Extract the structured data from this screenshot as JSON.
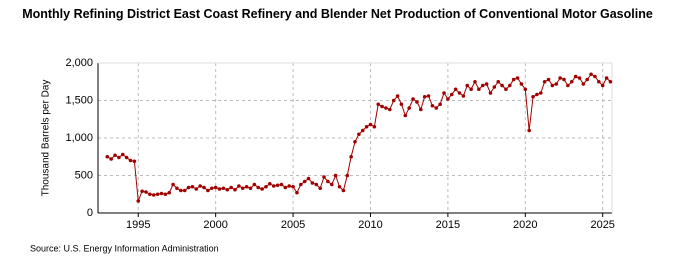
{
  "chart_data": {
    "type": "line",
    "title": "Monthly Refining District East Coast Refinery and Blender Net Production of Conventional Motor Gasoline",
    "y_label": "Thousand Barrels per Day",
    "source": "Source: U.S. Energy Information Administration",
    "color": "#a00000",
    "grid": true,
    "xlim": [
      1992.4,
      2025.6
    ],
    "xticks": [
      1995,
      2000,
      2005,
      2010,
      2015,
      2020,
      2025
    ],
    "ylim": [
      0,
      2000
    ],
    "yticks": [
      0,
      500,
      {
        "value": 1000,
        "label": "1,000"
      },
      {
        "value": 1500,
        "label": "1,500"
      },
      {
        "value": 2000,
        "label": "2,000"
      }
    ],
    "x": [
      1993,
      1993.25,
      1993.5,
      1993.75,
      1994,
      1994.25,
      1994.5,
      1994.75,
      1995,
      1995.25,
      1995.5,
      1995.75,
      1996,
      1996.25,
      1996.5,
      1996.75,
      1997,
      1997.25,
      1997.5,
      1997.75,
      1998,
      1998.25,
      1998.5,
      1998.75,
      1999,
      1999.25,
      1999.5,
      1999.75,
      2000,
      2000.25,
      2000.5,
      2000.75,
      2001,
      2001.25,
      2001.5,
      2001.75,
      2002,
      2002.25,
      2002.5,
      2002.75,
      2003,
      2003.25,
      2003.5,
      2003.75,
      2004,
      2004.25,
      2004.5,
      2004.75,
      2005,
      2005.25,
      2005.5,
      2005.75,
      2006,
      2006.25,
      2006.5,
      2006.75,
      2007,
      2007.25,
      2007.5,
      2007.75,
      2008,
      2008.25,
      2008.5,
      2008.75,
      2009,
      2009.25,
      2009.5,
      2009.75,
      2010,
      2010.25,
      2010.5,
      2010.75,
      2011,
      2011.25,
      2011.5,
      2011.75,
      2012,
      2012.25,
      2012.5,
      2012.75,
      2013,
      2013.25,
      2013.5,
      2013.75,
      2014,
      2014.25,
      2014.5,
      2014.75,
      2015,
      2015.25,
      2015.5,
      2015.75,
      2016,
      2016.25,
      2016.5,
      2016.75,
      2017,
      2017.25,
      2017.5,
      2017.75,
      2018,
      2018.25,
      2018.5,
      2018.75,
      2019,
      2019.25,
      2019.5,
      2019.75,
      2020,
      2020.25,
      2020.5,
      2020.75,
      2021,
      2021.25,
      2021.5,
      2021.75,
      2022,
      2022.25,
      2022.5,
      2022.75,
      2023,
      2023.25,
      2023.5,
      2023.75,
      2024,
      2024.25,
      2024.5,
      2024.75,
      2025,
      2025.25,
      2025.5
    ],
    "values": [
      750,
      720,
      770,
      740,
      780,
      740,
      700,
      690,
      160,
      290,
      280,
      250,
      240,
      250,
      260,
      250,
      270,
      380,
      330,
      300,
      300,
      340,
      350,
      320,
      360,
      340,
      300,
      330,
      340,
      320,
      330,
      310,
      340,
      310,
      360,
      330,
      350,
      330,
      380,
      340,
      320,
      350,
      390,
      360,
      370,
      380,
      340,
      360,
      350,
      270,
      380,
      420,
      460,
      400,
      380,
      330,
      480,
      420,
      380,
      500,
      350,
      300,
      500,
      750,
      950,
      1050,
      1100,
      1150,
      1180,
      1150,
      1450,
      1420,
      1400,
      1380,
      1500,
      1560,
      1450,
      1300,
      1400,
      1520,
      1480,
      1380,
      1550,
      1560,
      1430,
      1400,
      1450,
      1600,
      1520,
      1580,
      1650,
      1600,
      1560,
      1700,
      1650,
      1750,
      1650,
      1700,
      1720,
      1600,
      1680,
      1750,
      1700,
      1650,
      1700,
      1780,
      1800,
      1720,
      1650,
      1100,
      1550,
      1580,
      1600,
      1750,
      1780,
      1700,
      1720,
      1800,
      1780,
      1700,
      1750,
      1820,
      1800,
      1720,
      1780,
      1850,
      1820,
      1750,
      1700,
      1800,
      1750
    ]
  }
}
